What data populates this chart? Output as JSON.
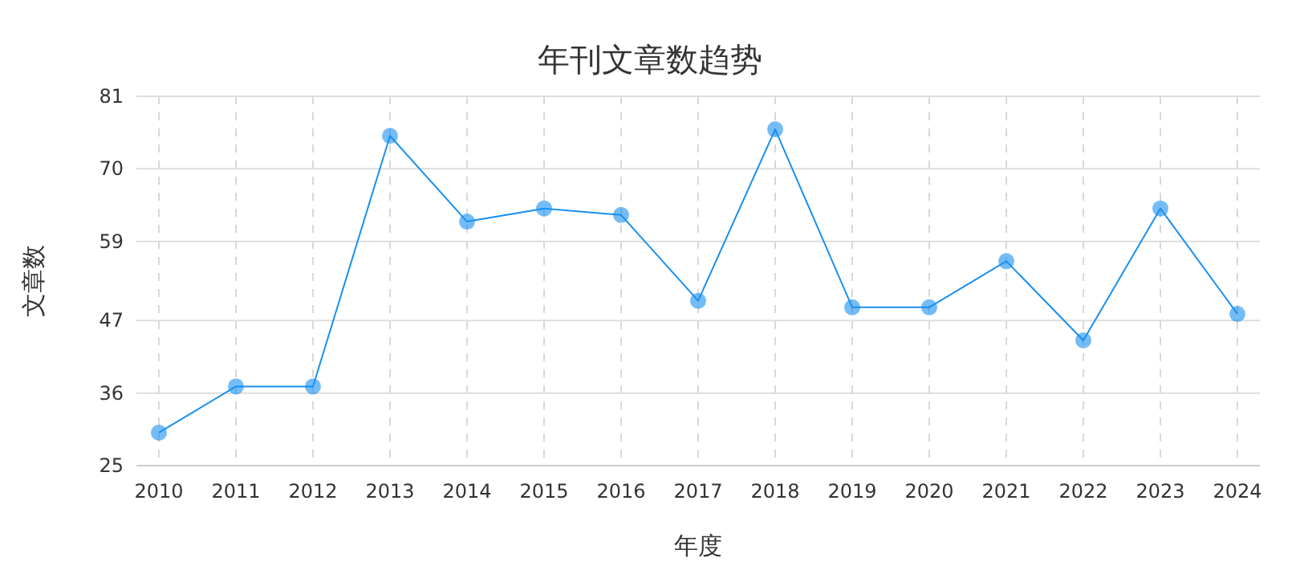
{
  "chart_data": {
    "type": "line",
    "title": "年刊文章数趋势",
    "xlabel": "年度",
    "ylabel": "文章数",
    "categories": [
      "2010",
      "2011",
      "2012",
      "2013",
      "2014",
      "2015",
      "2016",
      "2017",
      "2018",
      "2019",
      "2020",
      "2021",
      "2022",
      "2023",
      "2024"
    ],
    "series": [
      {
        "color": "#1890f0",
        "values": [
          30,
          37,
          37,
          75,
          62,
          64,
          63,
          50,
          76,
          49,
          49,
          56,
          44,
          64,
          48
        ]
      }
    ],
    "ylim": [
      25,
      81
    ],
    "yticks": [
      25,
      36,
      47,
      59,
      70,
      81
    ],
    "grid": true,
    "marker": "circle",
    "line_style": "solid"
  }
}
